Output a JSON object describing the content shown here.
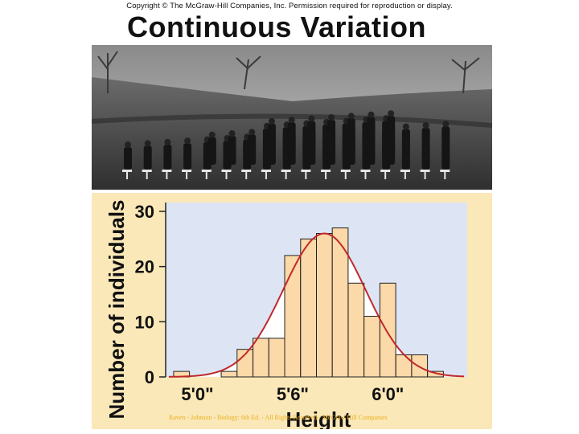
{
  "slide": {
    "copyright": "Copyright © The McGraw-Hill Companies, Inc. Permission required for reproduction or display.",
    "title": "Continuous Variation",
    "footer_credit": "Raven - Johnson - Biology: 6th Ed. - All Rights Reserved - McGraw Hill Companies"
  },
  "photo": {
    "icon": "photo-of-people-lined-up-by-height"
  },
  "colors": {
    "panel_bg": "#fbe8b8",
    "plot_bg": "#dde5f5",
    "bar_fill": "#fbd9a8",
    "bar_stroke": "#222222",
    "curve": "#c0282b",
    "curve_fill": "#ffffff"
  },
  "chart_data": {
    "type": "bar",
    "xlabel": "Height",
    "ylabel": "Number of individuals",
    "ylim": [
      0,
      30
    ],
    "yticks": [
      0,
      10,
      20,
      30
    ],
    "xtick_labels": [
      "5'0\"",
      "5'6\"",
      "6'0\""
    ],
    "xtick_inches": [
      60,
      66,
      72
    ],
    "xlim_inches": [
      58,
      77
    ],
    "bin_width_inches": 1,
    "bins": [
      {
        "x": 59,
        "value": 1
      },
      {
        "x": 60,
        "value": 0
      },
      {
        "x": 61,
        "value": 0
      },
      {
        "x": 62,
        "value": 1
      },
      {
        "x": 63,
        "value": 5
      },
      {
        "x": 64,
        "value": 7
      },
      {
        "x": 65,
        "value": 7
      },
      {
        "x": 66,
        "value": 22
      },
      {
        "x": 67,
        "value": 25
      },
      {
        "x": 68,
        "value": 26
      },
      {
        "x": 69,
        "value": 27
      },
      {
        "x": 70,
        "value": 17
      },
      {
        "x": 71,
        "value": 11
      },
      {
        "x": 72,
        "value": 17
      },
      {
        "x": 73,
        "value": 4
      },
      {
        "x": 74,
        "value": 4
      },
      {
        "x": 75,
        "value": 1
      }
    ],
    "curve": {
      "type": "normal",
      "mean_inches": 68,
      "peak": 26,
      "sd_inches": 2.6
    }
  }
}
